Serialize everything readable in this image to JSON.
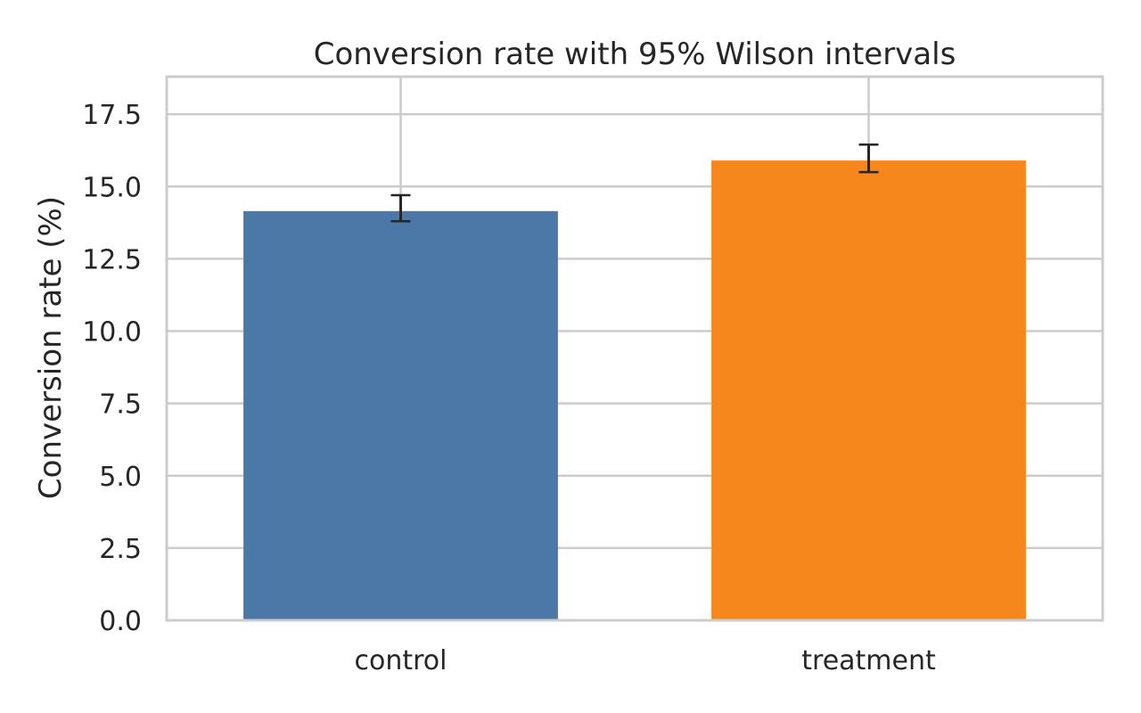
{
  "chart_data": {
    "type": "bar",
    "title": "Conversion rate with 95% Wilson intervals",
    "xlabel": "",
    "ylabel": "Conversion rate (%)",
    "categories": [
      "control",
      "treatment"
    ],
    "values": [
      14.15,
      15.9
    ],
    "error_bars": [
      {
        "lower": 13.8,
        "upper": 14.7
      },
      {
        "lower": 15.5,
        "upper": 16.45
      }
    ],
    "colors": [
      "#4c78a8",
      "#f5871d"
    ],
    "ylim": [
      0,
      18.8
    ],
    "yticks": [
      "0.0",
      "2.5",
      "5.0",
      "7.5",
      "10.0",
      "12.5",
      "15.0",
      "17.5"
    ],
    "ytick_values": [
      0,
      2.5,
      5,
      7.5,
      10,
      12.5,
      15,
      17.5
    ],
    "grid": true,
    "grid_color": "#cccccc",
    "frame_color": "#cccccc",
    "error_bar_color": "#262626"
  }
}
